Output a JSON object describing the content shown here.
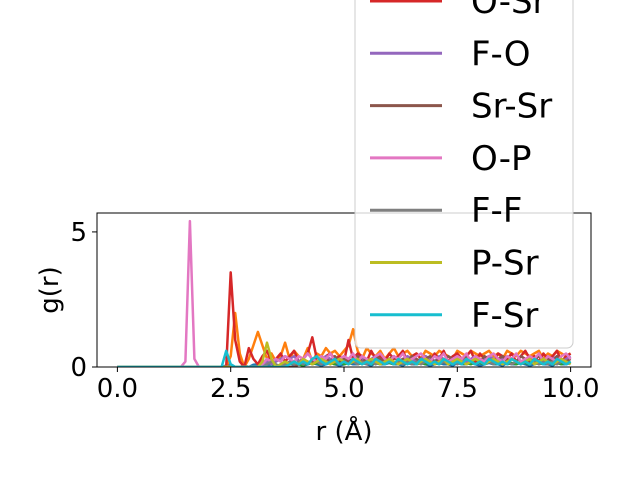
{
  "chart_data": {
    "type": "line",
    "xlabel": "r (Å)",
    "ylabel": "g(r)",
    "xlim": [
      -0.45,
      10.45
    ],
    "ylim": [
      0,
      5.7
    ],
    "xticks": [
      0.0,
      2.5,
      5.0,
      7.5,
      10.0
    ],
    "xtick_labels": [
      "0.0",
      "2.5",
      "5.0",
      "7.5",
      "10.0"
    ],
    "yticks": [
      0,
      5
    ],
    "ytick_labels": [
      "0",
      "5"
    ],
    "grid": false,
    "legend_placement": "upper-right (overflowing above axes)",
    "x": [
      0.0,
      0.1,
      0.2,
      0.3,
      0.4,
      0.5,
      0.6,
      0.7,
      0.8,
      0.9,
      1.0,
      1.1,
      1.2,
      1.3,
      1.4,
      1.5,
      1.6,
      1.7,
      1.8,
      1.9,
      2.0,
      2.1,
      2.2,
      2.3,
      2.4,
      2.5,
      2.6,
      2.7,
      2.8,
      2.9,
      3.0,
      3.1,
      3.2,
      3.3,
      3.4,
      3.5,
      3.6,
      3.7,
      3.8,
      3.9,
      4.0,
      4.1,
      4.2,
      4.3,
      4.4,
      4.5,
      4.6,
      4.7,
      4.8,
      4.9,
      5.0,
      5.1,
      5.2,
      5.3,
      5.4,
      5.5,
      5.6,
      5.7,
      5.8,
      5.9,
      6.0,
      6.1,
      6.2,
      6.3,
      6.4,
      6.5,
      6.6,
      6.7,
      6.8,
      6.9,
      7.0,
      7.1,
      7.2,
      7.3,
      7.4,
      7.5,
      7.6,
      7.7,
      7.8,
      7.9,
      8.0,
      8.1,
      8.2,
      8.3,
      8.4,
      8.5,
      8.6,
      8.7,
      8.8,
      8.9,
      9.0,
      9.1,
      9.2,
      9.3,
      9.4,
      9.5,
      9.6,
      9.7,
      9.8,
      9.9,
      10.0
    ],
    "series": [
      {
        "name": "",
        "color": "#1f77b4",
        "values": [
          0,
          0,
          0,
          0,
          0,
          0,
          0,
          0,
          0,
          0,
          0,
          0,
          0,
          0,
          0,
          0,
          0,
          0,
          0,
          0,
          0,
          0,
          0,
          0,
          0.05,
          0.1,
          0,
          0,
          0.05,
          0,
          0.08,
          0.1,
          0,
          0.05,
          0.1,
          0.05,
          0,
          0.1,
          0.15,
          0.05,
          0.1,
          0.05,
          0.1,
          0.15,
          0.1,
          0.05,
          0.1,
          0.15,
          0.1,
          0.05,
          0.1,
          0.15,
          0.1,
          0.1,
          0.15,
          0.1,
          0.05,
          0.15,
          0.1,
          0.1,
          0.15,
          0.1,
          0.1,
          0.05,
          0.15,
          0.1,
          0.1,
          0.15,
          0.1,
          0.05,
          0.1,
          0.15,
          0.1,
          0.1,
          0.05,
          0.15,
          0.1,
          0.1,
          0.15,
          0.1,
          0.05,
          0.1,
          0.15,
          0.1,
          0.1,
          0.05,
          0.15,
          0.1,
          0.1,
          0.15,
          0.1,
          0.05,
          0.1,
          0.15,
          0.1,
          0.1,
          0.05,
          0.15,
          0.1,
          0.1,
          0.15
        ]
      },
      {
        "name": "",
        "color": "#ff7f0e",
        "values": [
          0,
          0,
          0,
          0,
          0,
          0,
          0,
          0,
          0,
          0,
          0,
          0,
          0,
          0,
          0,
          0,
          0,
          0,
          0,
          0,
          0,
          0,
          0,
          0,
          0,
          0.4,
          2.0,
          0.5,
          0,
          0.3,
          0.8,
          1.3,
          0.8,
          0.3,
          0.5,
          0.2,
          0.4,
          0.9,
          0.3,
          0.6,
          0.4,
          0.3,
          0.7,
          0.2,
          0.5,
          0.4,
          0.7,
          0.5,
          0.6,
          0.4,
          0.6,
          0.8,
          1.4,
          0.6,
          0.3,
          0.7,
          0.5,
          0.4,
          0.6,
          0.3,
          0.5,
          0.7,
          0.4,
          0.5,
          0.6,
          0.4,
          0.5,
          0.3,
          0.6,
          0.5,
          0.4,
          0.6,
          0.5,
          0.4,
          0.3,
          0.6,
          0.5,
          0.4,
          0.6,
          0.5,
          0.4,
          0.5,
          0.6,
          0.4,
          0.5,
          0.3,
          0.6,
          0.5,
          0.4,
          0.6,
          0.5,
          0.4,
          0.5,
          0.6,
          0.3,
          0.5,
          0.4,
          0.6,
          0.5,
          0.4,
          0.5
        ]
      },
      {
        "name": "",
        "color": "#2ca02c",
        "values": [
          0,
          0,
          0,
          0,
          0,
          0,
          0,
          0,
          0,
          0,
          0,
          0,
          0,
          0,
          0,
          0,
          0,
          0,
          0,
          0,
          0,
          0,
          0,
          0,
          0,
          0,
          0,
          0,
          0,
          0,
          0,
          0,
          0.1,
          0.3,
          0.1,
          0,
          0.1,
          0.2,
          0.1,
          0.15,
          0.1,
          0.05,
          0.2,
          0.1,
          0.15,
          0.1,
          0.2,
          0.15,
          0.1,
          0.2,
          0.1,
          0.15,
          0.2,
          0.1,
          0.15,
          0.2,
          0.1,
          0.15,
          0.1,
          0.2,
          0.15,
          0.1,
          0.2,
          0.1,
          0.15,
          0.2,
          0.1,
          0.15,
          0.1,
          0.2,
          0.15,
          0.1,
          0.2,
          0.1,
          0.15,
          0.2,
          0.1,
          0.15,
          0.1,
          0.2,
          0.15,
          0.1,
          0.2,
          0.1,
          0.15,
          0.2,
          0.1,
          0.15,
          0.1,
          0.2,
          0.15,
          0.1,
          0.2,
          0.1,
          0.15,
          0.2,
          0.1,
          0.15,
          0.1,
          0.2,
          0.15
        ]
      },
      {
        "name": "O-Sr",
        "color": "#d62728",
        "values": [
          0,
          0,
          0,
          0,
          0,
          0,
          0,
          0,
          0,
          0,
          0,
          0,
          0,
          0,
          0,
          0,
          0,
          0,
          0,
          0,
          0,
          0,
          0,
          0,
          0,
          3.5,
          1.0,
          0.2,
          0,
          0.7,
          0.3,
          0.1,
          0.4,
          0.6,
          0.2,
          0.3,
          0.5,
          0.2,
          0.4,
          0.6,
          0.2,
          0.3,
          0.5,
          1.1,
          0.3,
          0.2,
          0.4,
          0.5,
          0.3,
          0.4,
          0.2,
          1.0,
          0.3,
          0.5,
          0.4,
          0.2,
          0.6,
          0.3,
          0.4,
          0.2,
          0.5,
          0.3,
          0.4,
          0.6,
          0.2,
          0.4,
          0.5,
          0.3,
          0.4,
          0.2,
          0.5,
          0.3,
          0.6,
          0.2,
          0.4,
          0.5,
          0.3,
          0.4,
          0.6,
          0.2,
          0.5,
          0.3,
          0.4,
          0.2,
          0.5,
          0.4,
          0.3,
          0.5,
          0.2,
          0.4,
          0.6,
          0.3,
          0.4,
          0.2,
          0.5,
          0.3,
          0.4,
          0.6,
          0.2,
          0.4,
          0.5
        ]
      },
      {
        "name": "F-O",
        "color": "#9467bd",
        "values": [
          0,
          0,
          0,
          0,
          0,
          0,
          0,
          0,
          0,
          0,
          0,
          0,
          0,
          0,
          0,
          0,
          0,
          0,
          0,
          0,
          0,
          0,
          0,
          0,
          0,
          0,
          0,
          0,
          0,
          0,
          0,
          0,
          0.1,
          0.2,
          0.1,
          0.2,
          0.3,
          0.4,
          0.3,
          0.4,
          0.2,
          0.3,
          0.5,
          0.3,
          0.2,
          0.3,
          0.4,
          0.3,
          0.2,
          0.3,
          0.4,
          0.3,
          0.2,
          0.4,
          0.3,
          0.2,
          0.3,
          0.4,
          0.3,
          0.2,
          0.3,
          0.4,
          0.2,
          0.3,
          0.4,
          0.3,
          0.2,
          0.3,
          0.4,
          0.3,
          0.2,
          0.4,
          0.3,
          0.2,
          0.3,
          0.4,
          0.3,
          0.2,
          0.3,
          0.4,
          0.2,
          0.3,
          0.4,
          0.3,
          0.2,
          0.3,
          0.4,
          0.3,
          0.2,
          0.4,
          0.3,
          0.2,
          0.3,
          0.4,
          0.3,
          0.2,
          0.3,
          0.4,
          0.2,
          0.3,
          0.4
        ]
      },
      {
        "name": "Sr-Sr",
        "color": "#8c564b",
        "values": [
          0,
          0,
          0,
          0,
          0,
          0,
          0,
          0,
          0,
          0,
          0,
          0,
          0,
          0,
          0,
          0,
          0,
          0,
          0,
          0,
          0,
          0,
          0,
          0,
          0,
          0,
          0,
          0,
          0,
          0,
          0,
          0,
          0,
          0,
          0,
          0,
          0,
          0,
          0,
          0,
          0.1,
          0.3,
          0.1,
          0.2,
          0.4,
          0.2,
          0.3,
          0.2,
          0.4,
          0.2,
          0.3,
          0.2,
          0.3,
          0.4,
          0.2,
          0.3,
          0.2,
          0.4,
          0.3,
          0.2,
          0.3,
          0.4,
          0.2,
          0.3,
          0.2,
          0.4,
          0.3,
          0.2,
          0.3,
          0.4,
          0.2,
          0.3,
          0.2,
          0.4,
          0.3,
          0.2,
          0.3,
          0.4,
          0.2,
          0.3,
          0.2,
          0.4,
          0.3,
          0.2,
          0.3,
          0.4,
          0.2,
          0.3,
          0.2,
          0.4,
          0.3,
          0.2,
          0.3,
          0.4,
          0.2,
          0.3,
          0.2,
          0.4,
          0.3,
          0.2,
          0.3
        ]
      },
      {
        "name": "O-P",
        "color": "#e377c2",
        "values": [
          0,
          0,
          0,
          0,
          0,
          0,
          0,
          0,
          0,
          0,
          0,
          0,
          0,
          0,
          0,
          0.2,
          5.4,
          0.3,
          0,
          0,
          0,
          0,
          0,
          0,
          0,
          0,
          0,
          0,
          0,
          0,
          0,
          0,
          0.1,
          0.3,
          0.2,
          0.3,
          0.2,
          0.4,
          0.3,
          0.2,
          0.4,
          0.3,
          0.5,
          0.3,
          0.2,
          0.4,
          0.3,
          0.5,
          0.2,
          0.3,
          0.4,
          0.3,
          0.5,
          0.2,
          0.4,
          0.3,
          0.2,
          0.4,
          0.5,
          0.3,
          0.2,
          0.4,
          0.3,
          0.5,
          0.2,
          0.3,
          0.4,
          0.5,
          0.3,
          0.2,
          0.4,
          0.3,
          0.5,
          0.2,
          0.3,
          0.4,
          0.3,
          0.5,
          0.2,
          0.4,
          0.3,
          0.2,
          0.4,
          0.5,
          0.3,
          0.2,
          0.4,
          0.3,
          0.5,
          0.2,
          0.3,
          0.4,
          0.3,
          0.5,
          0.2,
          0.4,
          0.3,
          0.2,
          0.4,
          0.5,
          0.3
        ]
      },
      {
        "name": "F-F",
        "color": "#7f7f7f",
        "values": [
          0,
          0,
          0,
          0,
          0,
          0,
          0,
          0,
          0,
          0,
          0,
          0,
          0,
          0,
          0,
          0,
          0,
          0,
          0,
          0,
          0,
          0,
          0,
          0,
          0,
          0,
          0,
          0,
          0,
          0,
          0,
          0,
          0,
          0.1,
          0.2,
          0.1,
          0,
          0.1,
          0.2,
          0.1,
          0.2,
          0.1,
          0.2,
          0.1,
          0.2,
          0.1,
          0.2,
          0.1,
          0.2,
          0.1,
          0.2,
          0.1,
          0.2,
          0.1,
          0.2,
          0.1,
          0.2,
          0.1,
          0.2,
          0.1,
          0.2,
          0.1,
          0.2,
          0.1,
          0.2,
          0.1,
          0.2,
          0.1,
          0.2,
          0.1,
          0.2,
          0.1,
          0.2,
          0.1,
          0.2,
          0.1,
          0.2,
          0.1,
          0.2,
          0.1,
          0.2,
          0.1,
          0.2,
          0.1,
          0.2,
          0.1,
          0.2,
          0.1,
          0.2,
          0.1,
          0.2,
          0.1,
          0.2,
          0.1,
          0.2,
          0.1,
          0.2,
          0.1,
          0.2,
          0.1,
          0.2
        ]
      },
      {
        "name": "P-Sr",
        "color": "#bcbd22",
        "values": [
          0,
          0,
          0,
          0,
          0,
          0,
          0,
          0,
          0,
          0,
          0,
          0,
          0,
          0,
          0,
          0,
          0,
          0,
          0,
          0,
          0,
          0,
          0,
          0,
          0,
          0,
          0,
          0,
          0,
          0,
          0,
          0,
          0.2,
          0.9,
          0.3,
          0,
          0.1,
          0.2,
          0.1,
          0.2,
          0.1,
          0.3,
          0.2,
          0.1,
          0.2,
          0.3,
          0.2,
          0.1,
          0.2,
          0.3,
          0.2,
          0.1,
          0.2,
          0.3,
          0.1,
          0.2,
          0.3,
          0.2,
          0.1,
          0.2,
          0.3,
          0.2,
          0.1,
          0.2,
          0.3,
          0.2,
          0.1,
          0.2,
          0.3,
          0.2,
          0.1,
          0.2,
          0.3,
          0.1,
          0.2,
          0.3,
          0.2,
          0.1,
          0.2,
          0.3,
          0.2,
          0.1,
          0.2,
          0.3,
          0.2,
          0.1,
          0.2,
          0.3,
          0.2,
          0.1,
          0.2,
          0.3,
          0.1,
          0.2,
          0.3,
          0.2,
          0.1,
          0.2,
          0.3,
          0.2,
          0.1
        ]
      },
      {
        "name": "F-Sr",
        "color": "#17becf",
        "values": [
          0,
          0,
          0,
          0,
          0,
          0,
          0,
          0,
          0,
          0,
          0,
          0,
          0,
          0,
          0,
          0,
          0,
          0,
          0,
          0,
          0,
          0,
          0,
          0,
          0.6,
          0.1,
          0,
          0,
          0,
          0,
          0,
          0,
          0,
          0,
          0,
          0,
          0,
          0,
          0.1,
          0.2,
          0.1,
          0.2,
          0.1,
          0.3,
          0.4,
          0.2,
          0.1,
          0.2,
          0.3,
          0.1,
          0.2,
          0.1,
          0.3,
          0.2,
          0.1,
          0.2,
          0.1,
          0.3,
          0.2,
          0.1,
          0.2,
          0.1,
          0.3,
          0.2,
          0.1,
          0.2,
          0.1,
          0.3,
          0.2,
          0.1,
          0.2,
          0.1,
          0.3,
          0.2,
          0.1,
          0.2,
          0.1,
          0.3,
          0.2,
          0.1,
          0.2,
          0.1,
          0.3,
          0.2,
          0.1,
          0.2,
          0.1,
          0.3,
          0.2,
          0.1,
          0.2,
          0.1,
          0.3,
          0.2,
          0.1,
          0.2,
          0.1,
          0.3,
          0.2,
          0.1,
          0.2
        ]
      }
    ]
  }
}
